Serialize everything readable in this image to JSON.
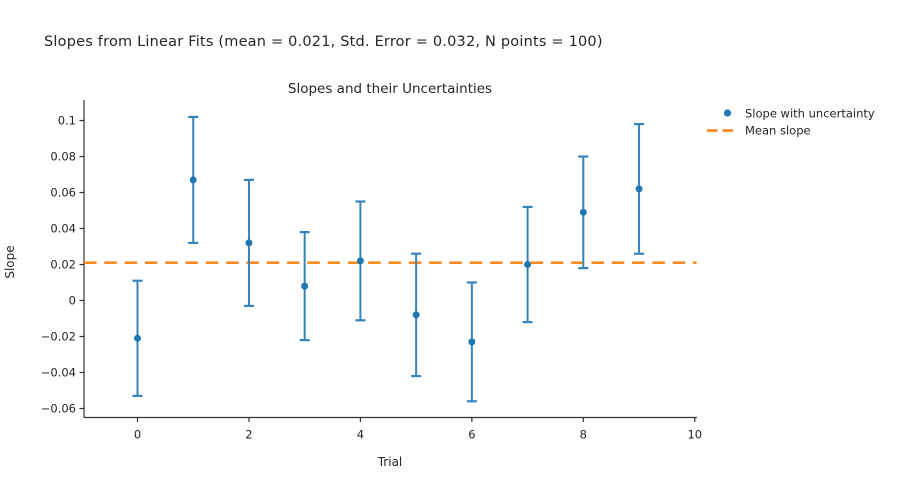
{
  "figure": {
    "suptitle": "Slopes from Linear Fits (mean = 0.021, Std. Error = 0.032, N points = 100)"
  },
  "chart_data": {
    "type": "scatter",
    "title": "Slopes and their Uncertainties",
    "xlabel": "Trial",
    "ylabel": "Slope",
    "mean_slope": 0.021,
    "std_error": 0.032,
    "n_points": 100,
    "xlim": [
      -0.96,
      10.04
    ],
    "ylim": [
      -0.065,
      0.1114
    ],
    "xticks": [
      {
        "v": 0,
        "label": "0"
      },
      {
        "v": 2,
        "label": "2"
      },
      {
        "v": 4,
        "label": "4"
      },
      {
        "v": 6,
        "label": "6"
      },
      {
        "v": 8,
        "label": "8"
      },
      {
        "v": 10,
        "label": "10"
      }
    ],
    "yticks": [
      {
        "v": 0.1,
        "label": "0.1"
      },
      {
        "v": 0.08,
        "label": "0.08"
      },
      {
        "v": 0.06,
        "label": "0.06"
      },
      {
        "v": 0.04,
        "label": "0.04"
      },
      {
        "v": 0.02,
        "label": "0.02"
      },
      {
        "v": 0,
        "label": "0"
      },
      {
        "v": -0.02,
        "label": "−0.02"
      },
      {
        "v": -0.04,
        "label": "−0.04"
      },
      {
        "v": -0.06,
        "label": "−0.06"
      }
    ],
    "grid": false,
    "legend_position": "outside-top-right",
    "series": [
      {
        "name": "Slope with uncertainty",
        "type": "errorbar-scatter",
        "color": "#1f77b4",
        "line_color": "#3584bc",
        "x": [
          0,
          1,
          2,
          3,
          4,
          5,
          6,
          7,
          8,
          9
        ],
        "y": [
          -0.021,
          0.067,
          0.032,
          0.008,
          0.022,
          -0.008,
          -0.023,
          0.02,
          0.049,
          0.062
        ],
        "yerr": [
          0.032,
          0.035,
          0.035,
          0.03,
          0.033,
          0.034,
          0.033,
          0.032,
          0.031,
          0.036
        ]
      },
      {
        "name": "Mean slope",
        "type": "line-dashed",
        "color": "#ff7f0e",
        "y": 0.021
      }
    ],
    "axis_color": "#333333"
  }
}
